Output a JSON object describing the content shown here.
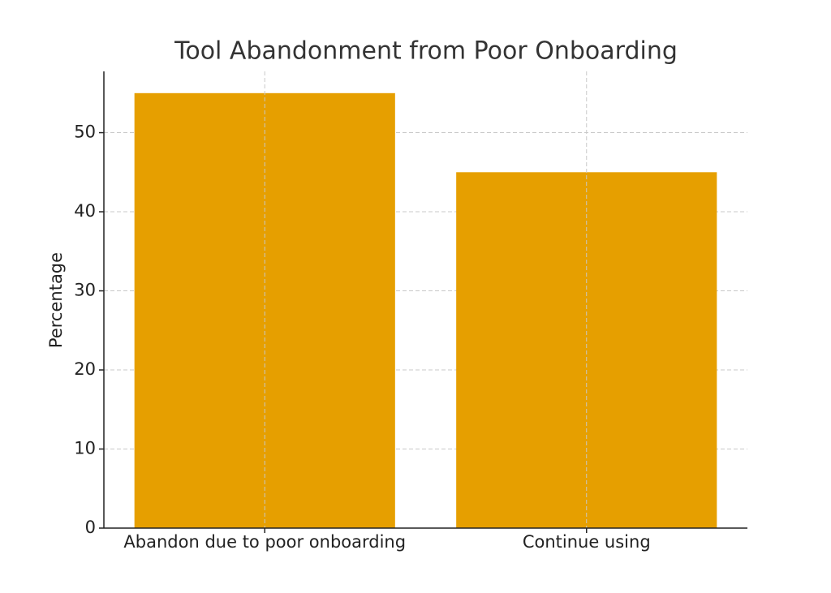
{
  "chart_data": {
    "type": "bar",
    "title": "Tool Abandonment from Poor Onboarding",
    "ylabel": "Percentage",
    "categories": [
      "Abandon due to poor onboarding",
      "Continue using"
    ],
    "values": [
      55,
      45
    ],
    "color": "#e69f00",
    "ylim": [
      0,
      57.75
    ],
    "yticks": [
      0,
      10,
      20,
      30,
      40,
      50
    ],
    "grid": true
  }
}
